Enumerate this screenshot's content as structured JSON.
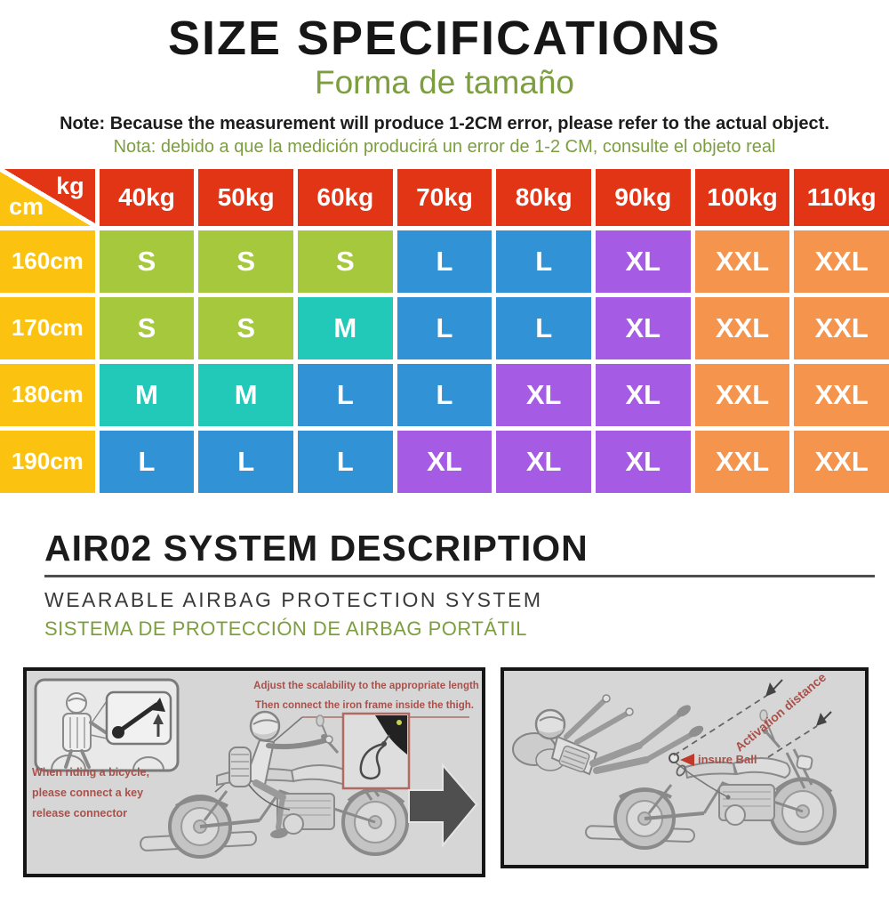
{
  "page": {
    "title": "SIZE SPECIFICATIONS",
    "subtitle": "Forma de tamaño",
    "note_en": "Note: Because the measurement will produce 1-2CM error, please refer to the actual object.",
    "note_es": "Nota: debido a que la medición producirá un error de 1-2 CM, consulte el objeto real"
  },
  "size_table": {
    "corner": {
      "top_right": "kg",
      "bottom_left": "cm"
    },
    "weight_headers": [
      "40kg",
      "50kg",
      "60kg",
      "70kg",
      "80kg",
      "90kg",
      "100kg",
      "110kg"
    ],
    "rows": [
      {
        "height": "160cm",
        "cells": [
          {
            "size": "S",
            "color": "green"
          },
          {
            "size": "S",
            "color": "green"
          },
          {
            "size": "S",
            "color": "green"
          },
          {
            "size": "L",
            "color": "blue"
          },
          {
            "size": "L",
            "color": "blue"
          },
          {
            "size": "XL",
            "color": "purple"
          },
          {
            "size": "XXL",
            "color": "orange"
          },
          {
            "size": "XXL",
            "color": "orange"
          }
        ]
      },
      {
        "height": "170cm",
        "cells": [
          {
            "size": "S",
            "color": "green"
          },
          {
            "size": "S",
            "color": "green"
          },
          {
            "size": "M",
            "color": "teal"
          },
          {
            "size": "L",
            "color": "blue"
          },
          {
            "size": "L",
            "color": "blue"
          },
          {
            "size": "XL",
            "color": "purple"
          },
          {
            "size": "XXL",
            "color": "orange"
          },
          {
            "size": "XXL",
            "color": "orange"
          }
        ]
      },
      {
        "height": "180cm",
        "cells": [
          {
            "size": "M",
            "color": "teal"
          },
          {
            "size": "M",
            "color": "teal"
          },
          {
            "size": "L",
            "color": "blue"
          },
          {
            "size": "L",
            "color": "blue"
          },
          {
            "size": "XL",
            "color": "purple"
          },
          {
            "size": "XL",
            "color": "purple"
          },
          {
            "size": "XXL",
            "color": "orange"
          },
          {
            "size": "XXL",
            "color": "orange"
          }
        ]
      },
      {
        "height": "190cm",
        "cells": [
          {
            "size": "L",
            "color": "blue"
          },
          {
            "size": "L",
            "color": "blue"
          },
          {
            "size": "L",
            "color": "blue"
          },
          {
            "size": "XL",
            "color": "purple"
          },
          {
            "size": "XL",
            "color": "purple"
          },
          {
            "size": "XL",
            "color": "purple"
          },
          {
            "size": "XXL",
            "color": "orange"
          },
          {
            "size": "XXL",
            "color": "orange"
          }
        ]
      }
    ],
    "colors": {
      "red": "#e23516",
      "yellow": "#fbc30f",
      "green": "#a6c83d",
      "teal": "#22c9b9",
      "blue": "#3193d6",
      "purple": "#a55be3",
      "orange": "#f5944d"
    }
  },
  "air_section": {
    "heading": "AIR02 SYSTEM DESCRIPTION",
    "subheading_en": "WEARABLE AIRBAG PROTECTION SYSTEM",
    "subheading_es": "SISTEMA DE PROTECCIÓN DE AIRBAG PORTÁTIL"
  },
  "diagrams": {
    "left": {
      "caption_top_line1": "Adjust the scalability to the appropriate length",
      "caption_top_line2": "Then connect the iron frame inside the thigh.",
      "caption_side_line1": "When riding a bicycle,",
      "caption_side_line2": "please connect a key",
      "caption_side_line3": "release connector"
    },
    "right": {
      "activation_label": "Activation distance",
      "ball_label": "insure Ball"
    }
  },
  "accent_colors": {
    "accent_green_text": "#7c9e3f",
    "caption_red_text": "#a8514b"
  }
}
